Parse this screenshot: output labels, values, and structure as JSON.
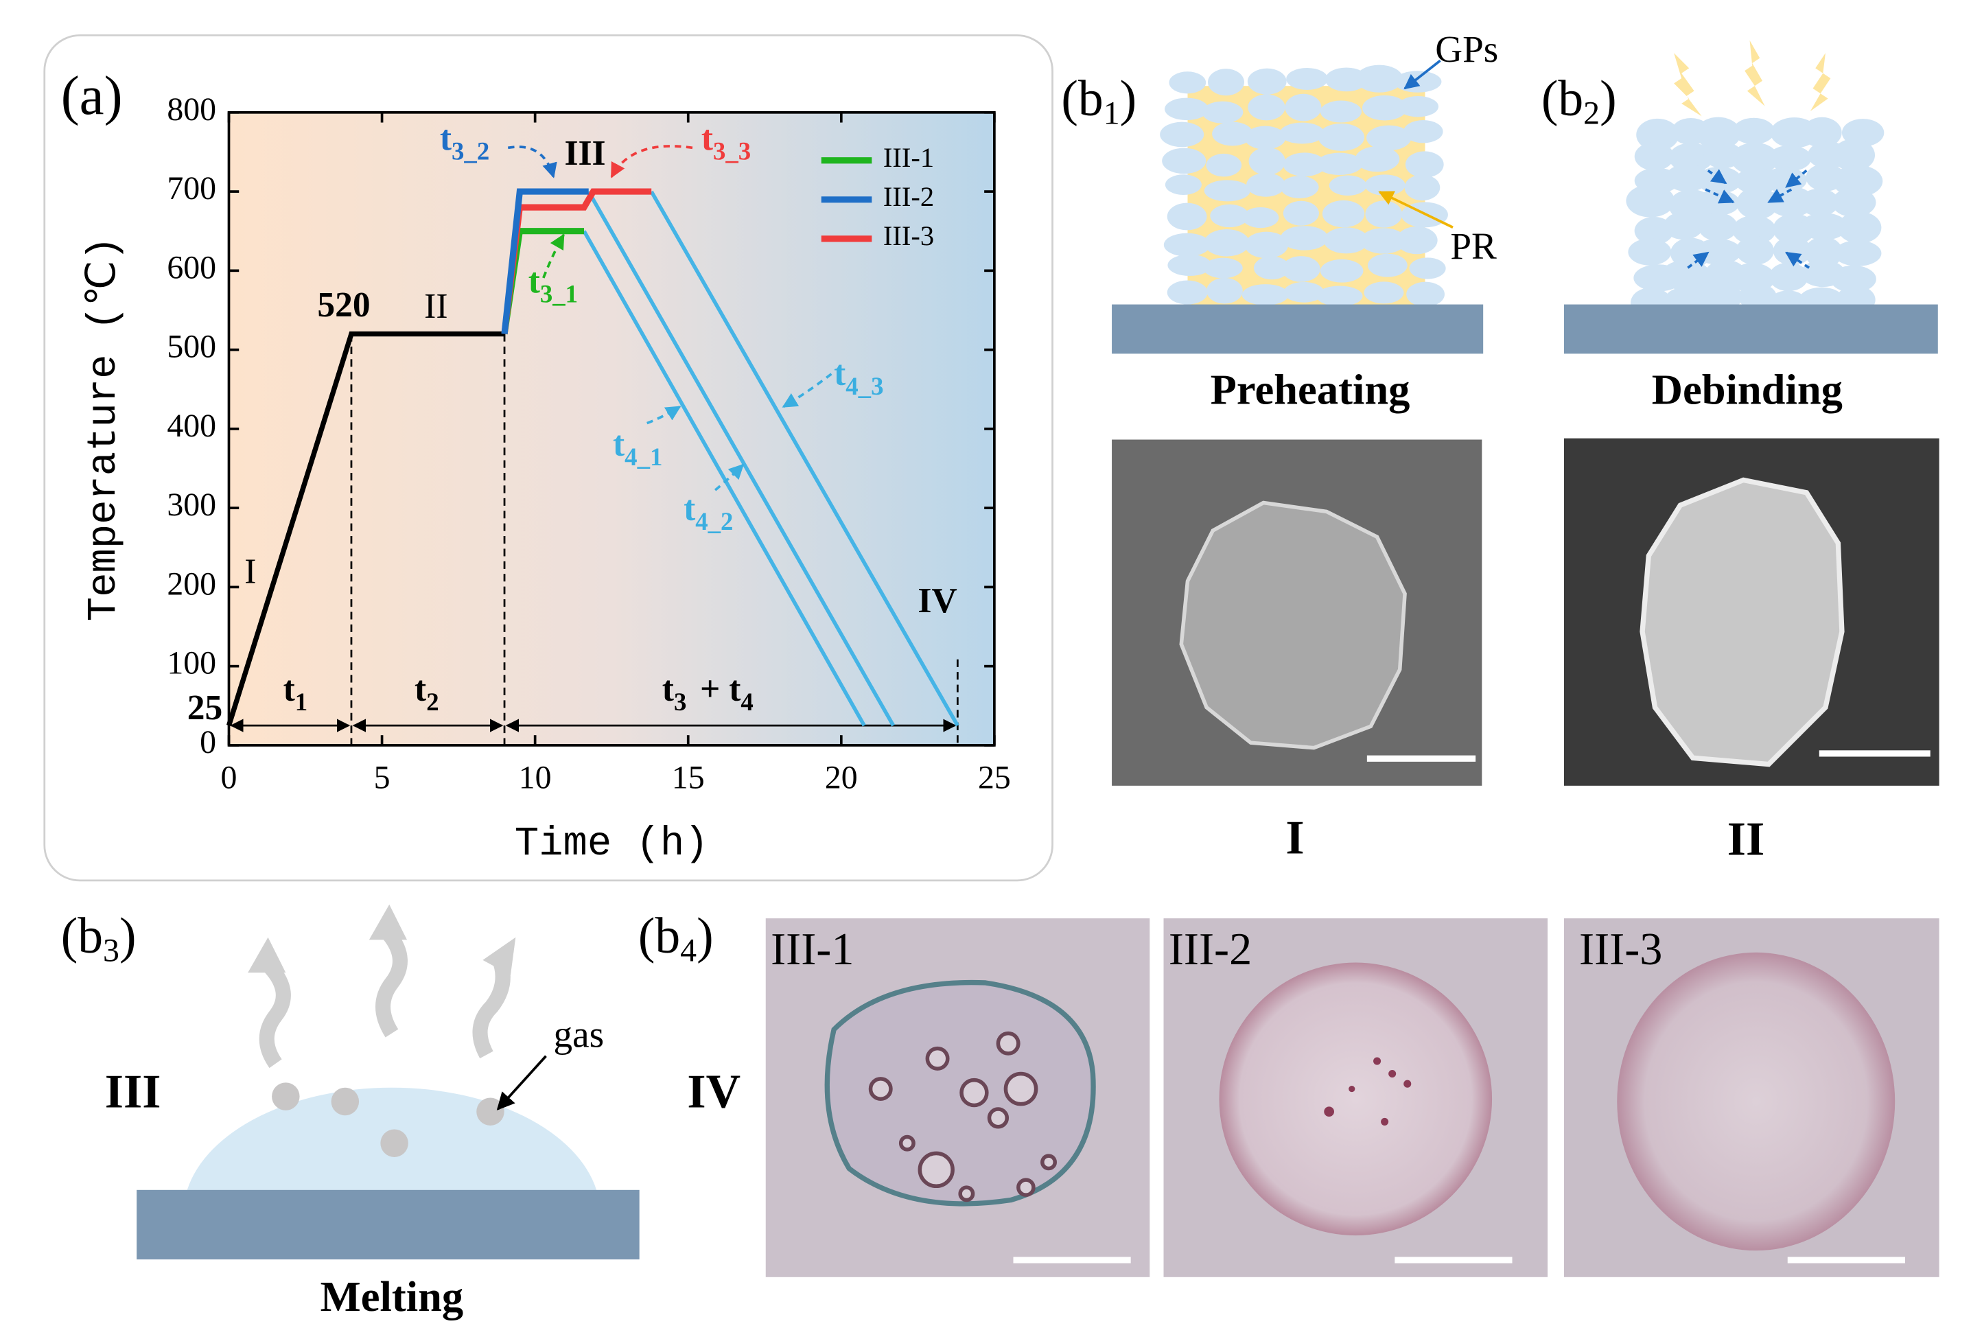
{
  "chart_data": {
    "type": "line",
    "panel_label": "(a)",
    "xlabel": "Time (h)",
    "ylabel": "Temperature (℃)",
    "xlim": [
      0,
      25
    ],
    "ylim": [
      0,
      800
    ],
    "xticks": [
      0,
      5,
      10,
      15,
      20,
      25
    ],
    "yticks": [
      0,
      100,
      200,
      300,
      400,
      500,
      600,
      700,
      800
    ],
    "legend": "upper right",
    "series": [
      {
        "color": "#000000",
        "x": [
          0,
          4,
          9
        ],
        "values": [
          25,
          520,
          520
        ]
      },
      {
        "name": "III-1",
        "color": "#1fb51f",
        "x": [
          9,
          9.5,
          11.6
        ],
        "values": [
          520,
          650,
          650
        ]
      },
      {
        "name": "III-2",
        "color": "#1f6fc7",
        "x": [
          9,
          9.5,
          11.75
        ],
        "values": [
          520,
          700,
          700
        ]
      },
      {
        "name": "III-3",
        "color": "#f03c3c",
        "x": [
          9,
          9.5,
          11.6,
          11.9,
          13.8
        ],
        "values": [
          520,
          680,
          680,
          700,
          700
        ]
      },
      {
        "color": "#45b4e6",
        "x": [
          11.6,
          20.75
        ],
        "values": [
          650,
          25
        ]
      },
      {
        "color": "#45b4e6",
        "x": [
          11.75,
          21.7
        ],
        "values": [
          700,
          25
        ]
      },
      {
        "color": "#45b4e6",
        "x": [
          13.8,
          23.8
        ],
        "values": [
          700,
          25
        ]
      }
    ],
    "annotations": [
      {
        "text": "520",
        "color": "#000000"
      },
      {
        "text": "25",
        "color": "#000000"
      },
      {
        "text": "I",
        "color": "#000000"
      },
      {
        "text": "II",
        "color": "#000000"
      },
      {
        "text": "III",
        "color": "#000000"
      },
      {
        "text": "IV",
        "color": "#000000"
      },
      {
        "text": "t",
        "sub": "1",
        "color": "#000000"
      },
      {
        "text": "t",
        "sub": "2",
        "color": "#000000"
      },
      {
        "text": "t",
        "sub": "3",
        "color": "#000000"
      },
      {
        "text": "+ t",
        "sub": "4",
        "color": "#000000"
      },
      {
        "text": "t",
        "sub": "3_2",
        "color": "#1f6fc7"
      },
      {
        "text": "t",
        "sub": "3_3",
        "color": "#f03c3c"
      },
      {
        "text": "t",
        "sub": "3_1",
        "color": "#1fb51f"
      },
      {
        "text": "t",
        "sub": "4_1",
        "color": "#3aaee0"
      },
      {
        "text": "t",
        "sub": "4_2",
        "color": "#3aaee0"
      },
      {
        "text": "t",
        "sub": "4_3",
        "color": "#3aaee0"
      }
    ]
  },
  "panels": {
    "b1": {
      "open": "(b",
      "sub": "1",
      "close": ")",
      "gps": "GPs",
      "pr": "PR",
      "caption": "Preheating",
      "stage": "I"
    },
    "b2": {
      "open": "(b",
      "sub": "2",
      "close": ")",
      "caption": "Debinding",
      "stage": "II"
    },
    "b3": {
      "open": "(b",
      "sub": "3",
      "close": ")",
      "stage": "III",
      "gas": "gas",
      "caption": "Melting"
    },
    "b4": {
      "open": "(b",
      "sub": "4",
      "close": ")",
      "stage": "IV",
      "images": [
        "III-1",
        "III-2",
        "III-3"
      ]
    }
  }
}
